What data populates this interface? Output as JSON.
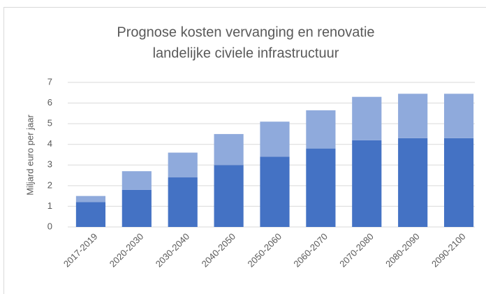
{
  "chart_data": {
    "type": "stacked_bar",
    "title": [
      "Prognose kosten vervanging en renovatie",
      "landelijke civiele infrastructuur"
    ],
    "y_label": "Miljard euro per jaar",
    "categories": [
      "2017-2019",
      "2020-2030",
      "2030-2040",
      "2040-2050",
      "2050-2060",
      "2060-2070",
      "2070-2080",
      "2080-2090",
      "2090-2100"
    ],
    "series": [
      {
        "color": "#4472c4",
        "values": [
          1.2,
          1.8,
          2.4,
          3.0,
          3.4,
          3.8,
          4.2,
          4.3,
          4.3
        ]
      },
      {
        "color": "#8faadc",
        "values": [
          0.3,
          0.9,
          1.2,
          1.5,
          1.7,
          1.85,
          2.1,
          2.15,
          2.15
        ]
      }
    ],
    "ylim": [
      0,
      7
    ],
    "yticks": [
      0,
      1,
      2,
      3,
      4,
      5,
      6,
      7
    ],
    "grid": true
  }
}
